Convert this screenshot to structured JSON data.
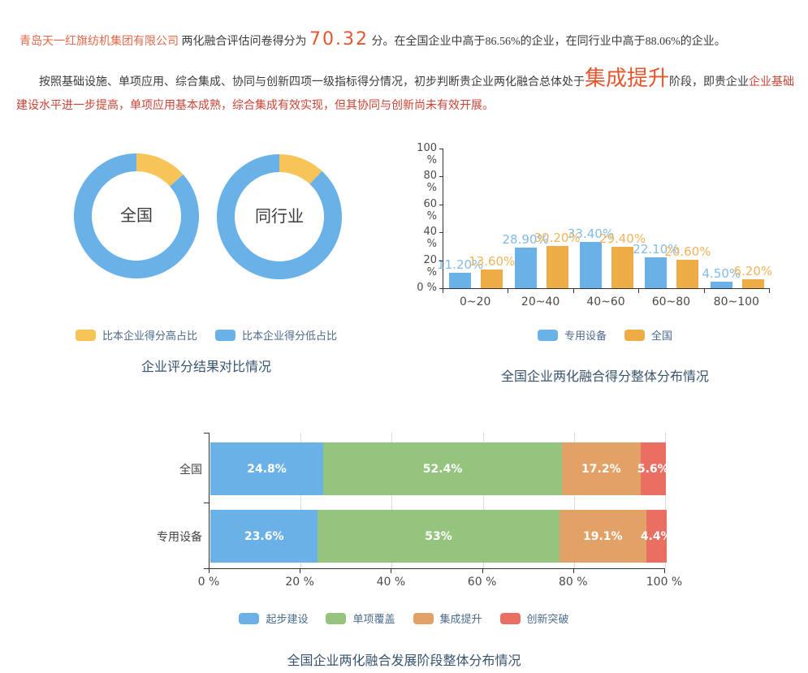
{
  "paragraph1": {
    "company": "青岛天一红旗纺机集团有限公司",
    "lead": " 两化融合评估问卷得分为 ",
    "score": "70.32",
    "tail": " 分。在全国企业中高于86.56%的企业，在同行业中高于88.06%的企业。"
  },
  "paragraph2": {
    "part1": "按照基础设施、单项应用、综合集成、协同与创新四项一级指标得分情况，初步判断贵企业两化融合总体处于",
    "stage": "集成提升",
    "part2": "阶段，即贵企业",
    "part3": "企业基础建设水平进一步提高，单项应用基本成熟，综合集成有效实现，但其协同与创新尚未有效开展。"
  },
  "colors": {
    "accent_orange_text": "#e7552f",
    "company_text": "#e06a4c",
    "red_text": "#cb4335",
    "title_text": "#38536e",
    "legend_text": "#4c6b8c",
    "blue": "#6ab1e8",
    "donut_yellow": "#f7c457",
    "bar_orange": "#eeac45",
    "green": "#94c47d",
    "stacked_orange": "#e2a267",
    "stacked_red": "#ea6e62"
  },
  "chart_data": [
    {
      "type": "pie",
      "subtype": "donut-pair",
      "title": "企业评分结果对比情况",
      "legend_position": "bottom",
      "legend": [
        {
          "label": "比本企业得分高占比",
          "color": "#f7c457"
        },
        {
          "label": "比本企业得分低占比",
          "color": "#6ab1e8"
        }
      ],
      "donuts": [
        {
          "label": "全国",
          "slices": [
            {
              "name": "比本企业得分高占比",
              "value": 13.44
            },
            {
              "name": "比本企业得分低占比",
              "value": 86.56
            }
          ]
        },
        {
          "label": "同行业",
          "slices": [
            {
              "name": "比本企业得分高占比",
              "value": 11.94
            },
            {
              "name": "比本企业得分低占比",
              "value": 88.06
            }
          ]
        }
      ]
    },
    {
      "type": "bar",
      "title": "全国企业两化融合得分整体分布情况",
      "legend_position": "bottom",
      "categories": [
        "0~20",
        "20~40",
        "40~60",
        "60~80",
        "80~100"
      ],
      "series": [
        {
          "name": "专用设备",
          "color": "#6ab1e8",
          "label_color": "#82bbea",
          "values": [
            11.2,
            28.9,
            33.4,
            22.1,
            4.5
          ],
          "labels": [
            "11.20%",
            "28.90%",
            "33.40%",
            "22.10%",
            "4.50%"
          ]
        },
        {
          "name": "全国",
          "color": "#eeac45",
          "label_color": "#f3b45c",
          "values": [
            13.6,
            30.2,
            29.4,
            20.6,
            6.2
          ],
          "labels": [
            "13.60%",
            "30.20%",
            "29.40%",
            "20.60%",
            "6.20%"
          ]
        }
      ],
      "ylabel_ticks": [
        "0 %",
        "20 %",
        "40 %",
        "60 %",
        "80 %",
        "100 %"
      ],
      "ylim": [
        0,
        100
      ],
      "grid": false
    },
    {
      "type": "stacked-bar",
      "orientation": "horizontal",
      "title": "全国企业两化融合发展阶段整体分布情况",
      "legend_position": "bottom",
      "categories": [
        "全国",
        "专用设备"
      ],
      "series": [
        {
          "name": "起步建设",
          "color": "#6ab1e8",
          "values": [
            24.8,
            23.6
          ],
          "labels": [
            "24.8%",
            "23.6%"
          ]
        },
        {
          "name": "单项覆盖",
          "color": "#94c47d",
          "values": [
            52.4,
            53
          ],
          "labels": [
            "52.4%",
            "53%"
          ]
        },
        {
          "name": "集成提升",
          "color": "#e2a267",
          "values": [
            17.2,
            19.1
          ],
          "labels": [
            "17.2%",
            "19.1%"
          ]
        },
        {
          "name": "创新突破",
          "color": "#ea6e62",
          "values": [
            5.6,
            4.4
          ],
          "labels": [
            "5.6%",
            "4.4%"
          ]
        }
      ],
      "x_ticks": [
        "0 %",
        "20 %",
        "40 %",
        "60 %",
        "80 %",
        "100 %"
      ],
      "xlim": [
        0,
        100
      ],
      "grid": true
    }
  ]
}
